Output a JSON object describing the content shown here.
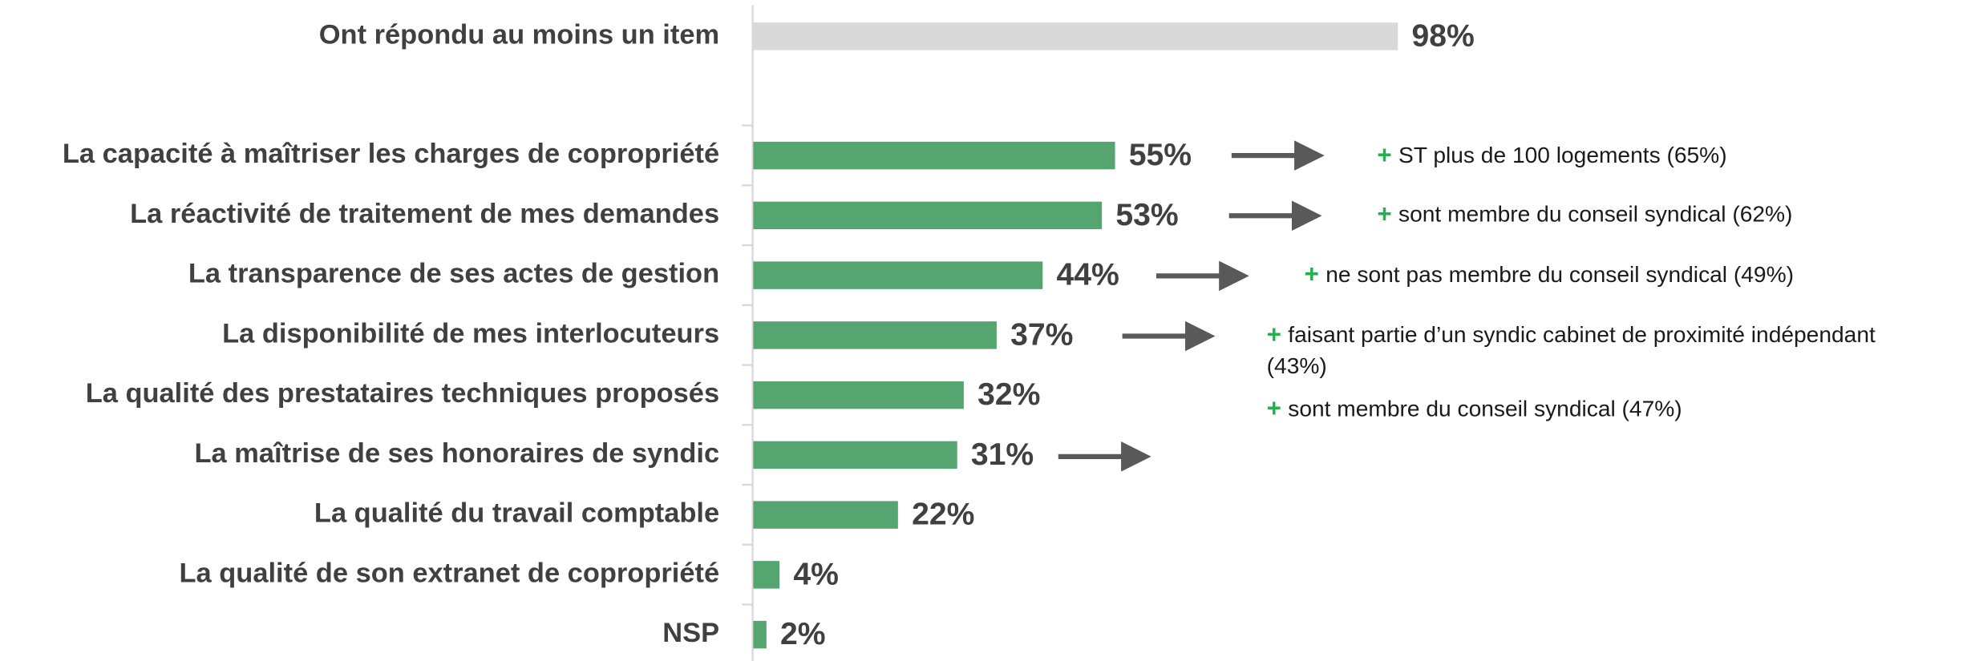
{
  "chart_data": {
    "type": "bar",
    "orientation": "horizontal",
    "categories": [
      "Ont répondu au moins un item",
      "La capacité à maîtriser les charges de copropriété",
      "La réactivité de traitement de mes demandes",
      "La transparence de ses actes de gestion",
      "La disponibilité de mes interlocuteurs",
      "La qualité des prestataires techniques proposés",
      "La maîtrise de ses honoraires de syndic",
      "La qualité du travail comptable",
      "La qualité de son extranet de copropriété",
      "NSP"
    ],
    "values": [
      98,
      55,
      53,
      44,
      37,
      32,
      31,
      22,
      4,
      2
    ],
    "value_labels": [
      "98%",
      "55%",
      "53%",
      "44%",
      "37%",
      "32%",
      "31%",
      "22%",
      "4%",
      "2%"
    ],
    "colors": [
      "#d9d9d9",
      "#55a571",
      "#55a571",
      "#55a571",
      "#55a571",
      "#55a571",
      "#55a571",
      "#55a571",
      "#55a571",
      "#55a571"
    ],
    "xlim": [
      0,
      100
    ],
    "bullet": "+",
    "annotations": [
      {
        "lines": [
          "ST plus de 100 logements (65%)"
        ]
      },
      {
        "lines": [
          "sont membre du conseil syndical (62%)"
        ]
      },
      {
        "lines": [
          "ne sont pas membre du conseil syndical (49%)"
        ]
      },
      {
        "lines": [
          "faisant partie d’un syndic cabinet de proximité indépendant",
          "(43%)"
        ]
      },
      {
        "lines": [
          "sont membre du conseil syndical (47%)"
        ]
      }
    ]
  }
}
